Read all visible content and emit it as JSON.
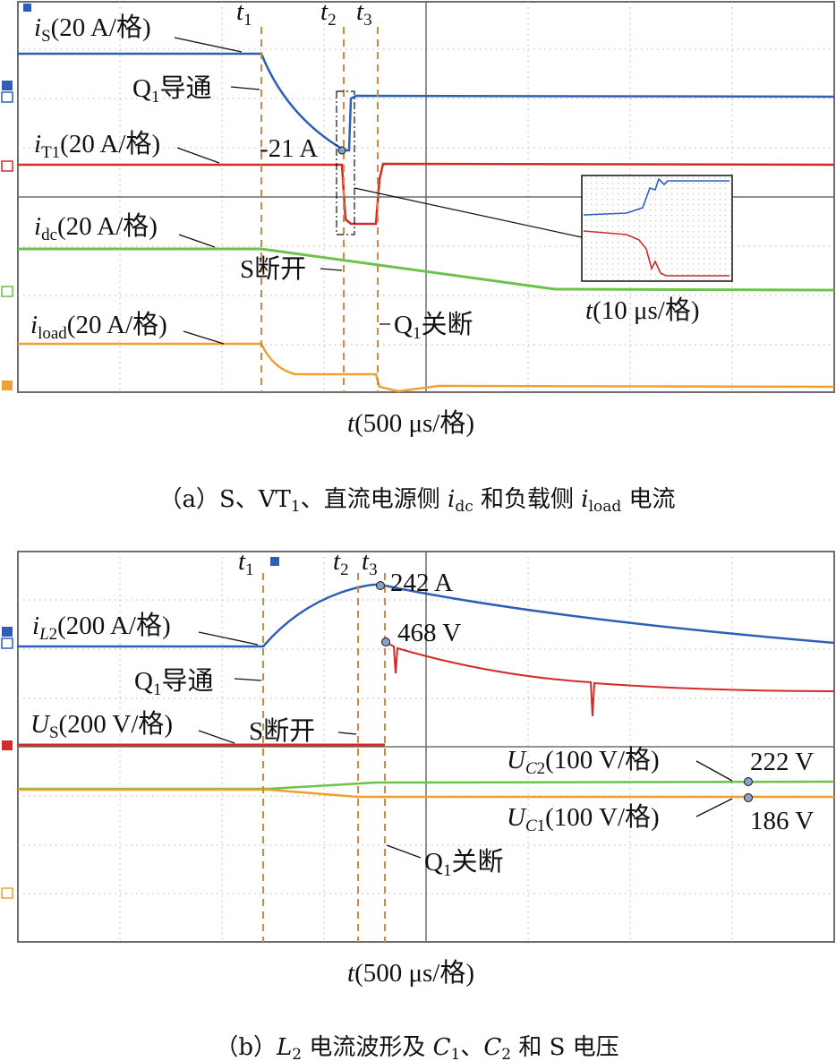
{
  "chart_data": [
    {
      "type": "line",
      "panel": "a",
      "caption": "（a）S、VT₁、直流电源侧 idc 和负载侧 iload 电流",
      "xlabel": "t(500 μs/格)",
      "grid": true,
      "markers": [
        "t1",
        "t2",
        "t3"
      ],
      "series": [
        {
          "name": "iS(20 A/格)",
          "color": "#2d5fb8"
        },
        {
          "name": "iT1(20 A/格)",
          "color": "#d42a2a"
        },
        {
          "name": "idc(20 A/格)",
          "color": "#6cc24a"
        },
        {
          "name": "iload(20 A/格)",
          "color": "#f0a030"
        }
      ],
      "annotations": [
        "Q1导通",
        "-21 A",
        "S断开",
        "Q1关断"
      ],
      "inset": {
        "xlabel": "t(10 μs/格)"
      }
    },
    {
      "type": "line",
      "panel": "b",
      "caption": "（b）L₂ 电流波形及 C₁、C₂ 和 S 电压",
      "xlabel": "t(500 μs/格)",
      "grid": true,
      "markers": [
        "t1",
        "t2",
        "t3"
      ],
      "series": [
        {
          "name": "iL2(200 A/格)",
          "color": "#2d5fb8"
        },
        {
          "name": "US(200 V/格)",
          "color": "#d42a2a"
        },
        {
          "name": "UC2(100 V/格)",
          "color": "#6cc24a"
        },
        {
          "name": "UC1(100 V/格)",
          "color": "#f0a030"
        }
      ],
      "annotations": [
        "Q1导通",
        "S断开",
        "Q1关断",
        "242 A",
        "468 V",
        "222 V",
        "186 V"
      ]
    }
  ],
  "colors": {
    "blue": "#2d5fb8",
    "red": "#d42a2a",
    "green": "#6cc24a",
    "orange": "#f0a030",
    "marker": "#d08a40"
  }
}
